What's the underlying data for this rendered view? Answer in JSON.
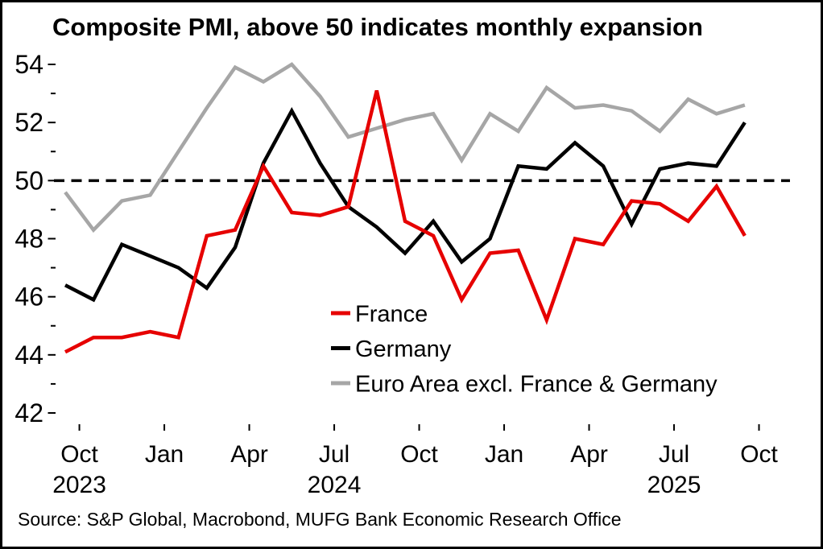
{
  "title": "Composite PMI, above 50 indicates monthly expansion",
  "source_note": "Source: S&P Global, Macrobond, MUFG Bank Economic Research Office",
  "colors": {
    "france": "#e60000",
    "germany": "#000000",
    "euro_area": "#a6a6a6",
    "threshold": "#000000",
    "axis": "#000000"
  },
  "chart_data": {
    "type": "line",
    "title": "Composite PMI, above 50 indicates monthly expansion",
    "x_unit": "month",
    "x": [
      "Sep 2023",
      "Oct 2023",
      "Nov 2023",
      "Dec 2023",
      "Jan 2024",
      "Feb 2024",
      "Mar 2024",
      "Apr 2024",
      "May 2024",
      "Jun 2024",
      "Jul 2024",
      "Aug 2024",
      "Sep 2024",
      "Oct 2024",
      "Nov 2024",
      "Dec 2024",
      "Jan 2025",
      "Feb 2025",
      "Mar 2025",
      "Apr 2025",
      "May 2025",
      "Jun 2025",
      "Jul 2025",
      "Aug 2025",
      "Sep 2025"
    ],
    "series": [
      {
        "name": "France",
        "color_key": "france",
        "values": [
          44.1,
          44.6,
          44.6,
          44.8,
          44.6,
          48.1,
          48.3,
          50.5,
          48.9,
          48.8,
          49.1,
          53.1,
          48.6,
          48.1,
          45.9,
          47.5,
          47.6,
          45.2,
          48.0,
          47.8,
          49.3,
          49.2,
          48.6,
          49.8,
          48.1
        ]
      },
      {
        "name": "Germany",
        "color_key": "germany",
        "values": [
          46.4,
          45.9,
          47.8,
          47.4,
          47.0,
          46.3,
          47.7,
          50.6,
          52.4,
          50.6,
          49.1,
          48.4,
          47.5,
          48.6,
          47.2,
          48.0,
          50.5,
          50.4,
          51.3,
          50.5,
          48.5,
          50.4,
          50.6,
          50.5,
          52.0
        ]
      },
      {
        "name": "Euro Area excl. France & Germany",
        "color_key": "euro_area",
        "values": [
          49.6,
          48.3,
          49.3,
          49.5,
          51.0,
          52.5,
          53.9,
          53.4,
          54.0,
          52.9,
          51.5,
          51.8,
          52.1,
          52.3,
          50.7,
          52.3,
          51.7,
          53.2,
          52.5,
          52.6,
          52.4,
          51.7,
          52.8,
          52.3,
          52.6
        ]
      }
    ],
    "threshold_line": {
      "value": 50,
      "style": "dashed",
      "meaning": "above 50 indicates monthly expansion"
    },
    "ylim": [
      41.5,
      54.6
    ],
    "yticks_labeled": [
      42,
      44,
      46,
      48,
      50,
      52,
      54
    ],
    "yticks_minor": [
      43,
      45,
      47,
      49,
      51,
      53
    ],
    "xticks": [
      {
        "label": "Oct",
        "month_index": 1,
        "year_label": "2023"
      },
      {
        "label": "Jan",
        "month_index": 4,
        "year_label": ""
      },
      {
        "label": "Apr",
        "month_index": 7,
        "year_label": ""
      },
      {
        "label": "Jul",
        "month_index": 10,
        "year_label": "2024"
      },
      {
        "label": "Oct",
        "month_index": 13,
        "year_label": ""
      },
      {
        "label": "Jan",
        "month_index": 16,
        "year_label": ""
      },
      {
        "label": "Apr",
        "month_index": 19,
        "year_label": ""
      },
      {
        "label": "Jul",
        "month_index": 22,
        "year_label": "2025"
      },
      {
        "label": "Oct",
        "month_index": 25,
        "year_label": ""
      }
    ],
    "legend": {
      "position": "inside-right-middle",
      "entries": [
        "France",
        "Germany",
        "Euro Area excl. France & Germany"
      ]
    },
    "grid": false
  }
}
